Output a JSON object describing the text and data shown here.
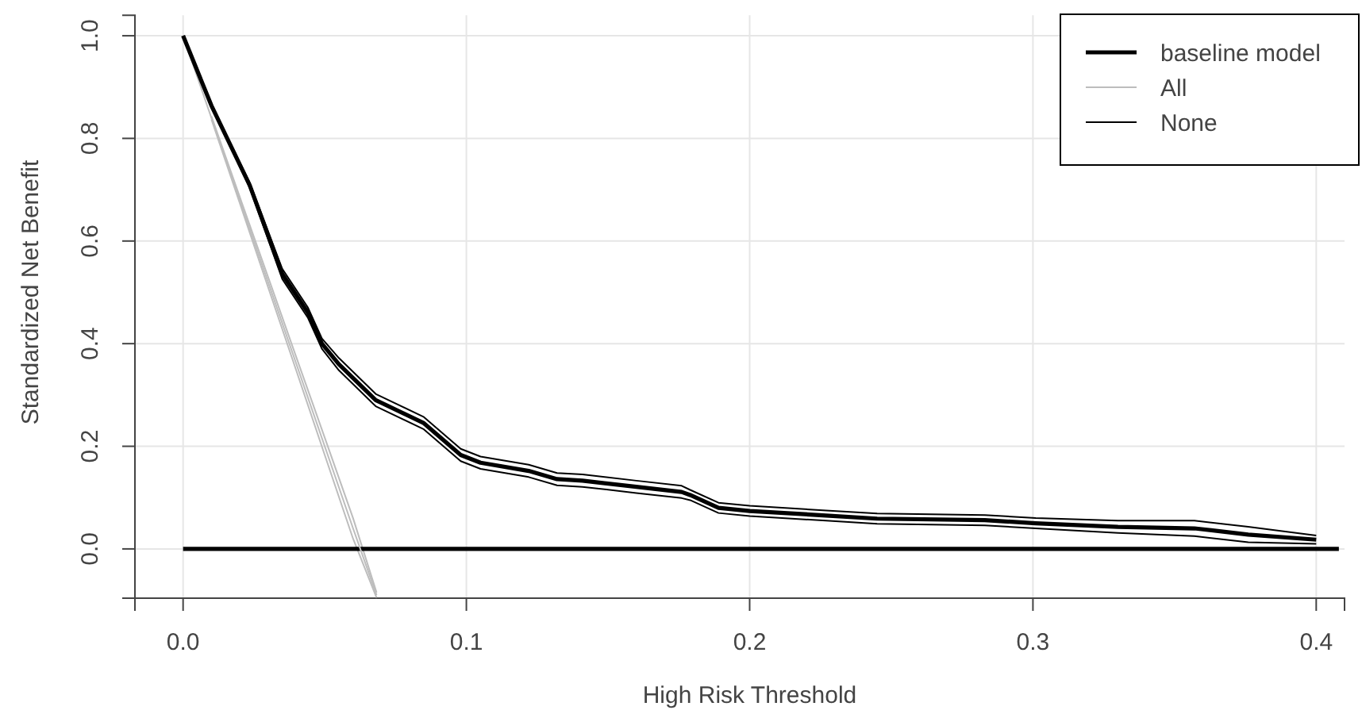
{
  "chart_data": {
    "type": "line",
    "xlabel": "High Risk Threshold",
    "ylabel": "Standardized Net Benefit",
    "xlim": [
      -0.017,
      0.41
    ],
    "xticks": [
      {
        "value": 0,
        "label": "0.0"
      },
      0.1,
      0.2,
      0.3,
      0.4
    ],
    "ylim": [
      -0.096,
      1.04
    ],
    "yticks": [
      {
        "value": 0,
        "label": "0.0"
      },
      0.2,
      0.4,
      0.6,
      0.8,
      {
        "value": 1,
        "label": "1.0"
      }
    ],
    "grid": true,
    "legend": "top right",
    "marker": "none",
    "line_style": "solid",
    "series": [
      {
        "name": "baseline model",
        "color": "#000000",
        "x": [
          0,
          0.01,
          0.0235,
          0.035,
          0.044,
          0.049,
          0.055,
          0.068,
          0.085,
          0.098,
          0.105,
          0.122,
          0.132,
          0.141,
          0.16,
          0.176,
          0.179,
          0.189,
          0.2,
          0.227,
          0.245,
          0.283,
          0.301,
          0.33,
          0.357,
          0.376,
          0.4
        ],
        "values": [
          1,
          0.864,
          0.709,
          0.536,
          0.461,
          0.4,
          0.36,
          0.29,
          0.245,
          0.183,
          0.168,
          0.152,
          0.136,
          0.133,
          0.121,
          0.111,
          0.105,
          0.08,
          0.074,
          0.065,
          0.059,
          0.056,
          0.05,
          0.043,
          0.04,
          0.028,
          0.018
        ]
      },
      {
        "name": "All",
        "color": "#bdbdbd",
        "x": [
          0,
          0.01,
          0.02,
          0.03,
          0.04,
          0.05,
          0.06,
          0.0683
        ],
        "values": [
          1,
          0.84,
          0.68,
          0.52,
          0.36,
          0.2,
          0.04,
          -0.09
        ]
      },
      {
        "name": "None",
        "color": "#000000",
        "x": [
          0,
          0.408
        ],
        "values": [
          0,
          0
        ]
      },
      {
        "color": "#000000",
        "x": [
          0,
          0.01,
          0.0235,
          0.035,
          0.044,
          0.049,
          0.055,
          0.068,
          0.085,
          0.098,
          0.105,
          0.122,
          0.132,
          0.141,
          0.16,
          0.176,
          0.179,
          0.189,
          0.2,
          0.227,
          0.245,
          0.283,
          0.301,
          0.33,
          0.357,
          0.376,
          0.4
        ],
        "values": [
          1,
          0.864,
          0.704,
          0.526,
          0.451,
          0.39,
          0.348,
          0.278,
          0.233,
          0.171,
          0.156,
          0.14,
          0.124,
          0.121,
          0.109,
          0.099,
          0.095,
          0.07,
          0.064,
          0.055,
          0.049,
          0.046,
          0.04,
          0.031,
          0.025,
          0.013,
          0.01
        ]
      },
      {
        "color": "#000000",
        "x": [
          0,
          0.01,
          0.0235,
          0.035,
          0.044,
          0.049,
          0.055,
          0.068,
          0.085,
          0.098,
          0.105,
          0.122,
          0.132,
          0.141,
          0.16,
          0.176,
          0.179,
          0.189,
          0.2,
          0.227,
          0.245,
          0.283,
          0.301,
          0.33,
          0.357,
          0.376,
          0.4
        ],
        "values": [
          1,
          0.864,
          0.714,
          0.546,
          0.471,
          0.41,
          0.372,
          0.302,
          0.257,
          0.195,
          0.18,
          0.164,
          0.148,
          0.145,
          0.133,
          0.123,
          0.115,
          0.09,
          0.084,
          0.075,
          0.069,
          0.066,
          0.06,
          0.055,
          0.055,
          0.043,
          0.026
        ]
      },
      {
        "color": "#bdbdbd",
        "x": [
          0.01,
          0.02,
          0.03,
          0.04,
          0.05,
          0.06,
          0.0683
        ],
        "values": [
          0.837,
          0.674,
          0.51,
          0.347,
          0.183,
          0.02,
          -0.095
        ]
      },
      {
        "color": "#bdbdbd",
        "x": [
          0.01,
          0.02,
          0.03,
          0.04,
          0.05,
          0.06,
          0.0683
        ],
        "values": [
          0.843,
          0.686,
          0.53,
          0.373,
          0.217,
          0.06,
          -0.085
        ]
      }
    ]
  }
}
